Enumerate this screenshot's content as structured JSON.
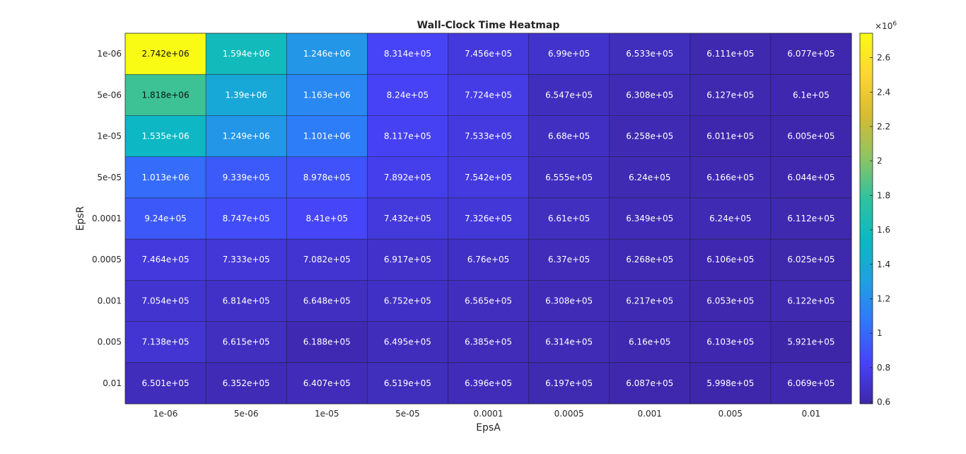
{
  "chart_data": {
    "type": "heatmap",
    "title": "Wall-Clock Time Heatmap",
    "xlabel": "EpsA",
    "ylabel": "EpsR",
    "x_categories": [
      "1e-06",
      "5e-06",
      "1e-05",
      "5e-05",
      "0.0001",
      "0.0005",
      "0.001",
      "0.005",
      "0.01"
    ],
    "y_categories": [
      "1e-06",
      "5e-06",
      "1e-05",
      "5e-05",
      "0.0001",
      "0.0005",
      "0.001",
      "0.005",
      "0.01"
    ],
    "values": [
      [
        2742000,
        1594000,
        1246000,
        831400,
        745600,
        699000,
        653300,
        611100,
        607700
      ],
      [
        1818000,
        1390000,
        1163000,
        824000,
        772400,
        654700,
        630800,
        612700,
        610000
      ],
      [
        1535000,
        1249000,
        1101000,
        811700,
        753300,
        668000,
        625800,
        601100,
        600500
      ],
      [
        1013000,
        933900,
        897800,
        789200,
        754200,
        655500,
        624000,
        616600,
        604400
      ],
      [
        924000,
        874700,
        841000,
        743200,
        732600,
        661000,
        634900,
        624000,
        611200
      ],
      [
        746400,
        733300,
        708200,
        691700,
        676000,
        637000,
        626800,
        610600,
        602500
      ],
      [
        705400,
        681400,
        664800,
        675200,
        656500,
        630800,
        621700,
        605300,
        612200
      ],
      [
        713800,
        661500,
        618800,
        649500,
        638500,
        631400,
        616000,
        610300,
        592100
      ],
      [
        650100,
        635200,
        640700,
        651900,
        639600,
        619700,
        608700,
        599800,
        606900
      ]
    ],
    "cell_labels": [
      [
        "2.742e+06",
        "1.594e+06",
        "1.246e+06",
        "8.314e+05",
        "7.456e+05",
        "6.99e+05",
        "6.533e+05",
        "6.111e+05",
        "6.077e+05"
      ],
      [
        "1.818e+06",
        "1.39e+06",
        "1.163e+06",
        "8.24e+05",
        "7.724e+05",
        "6.547e+05",
        "6.308e+05",
        "6.127e+05",
        "6.1e+05"
      ],
      [
        "1.535e+06",
        "1.249e+06",
        "1.101e+06",
        "8.117e+05",
        "7.533e+05",
        "6.68e+05",
        "6.258e+05",
        "6.011e+05",
        "6.005e+05"
      ],
      [
        "1.013e+06",
        "9.339e+05",
        "8.978e+05",
        "7.892e+05",
        "7.542e+05",
        "6.555e+05",
        "6.24e+05",
        "6.166e+05",
        "6.044e+05"
      ],
      [
        "9.24e+05",
        "8.747e+05",
        "8.41e+05",
        "7.432e+05",
        "7.326e+05",
        "6.61e+05",
        "6.349e+05",
        "6.24e+05",
        "6.112e+05"
      ],
      [
        "7.464e+05",
        "7.333e+05",
        "7.082e+05",
        "6.917e+05",
        "6.76e+05",
        "6.37e+05",
        "6.268e+05",
        "6.106e+05",
        "6.025e+05"
      ],
      [
        "7.054e+05",
        "6.814e+05",
        "6.648e+05",
        "6.752e+05",
        "6.565e+05",
        "6.308e+05",
        "6.217e+05",
        "6.053e+05",
        "6.122e+05"
      ],
      [
        "7.138e+05",
        "6.615e+05",
        "6.188e+05",
        "6.495e+05",
        "6.385e+05",
        "6.314e+05",
        "6.16e+05",
        "6.103e+05",
        "5.921e+05"
      ],
      [
        "6.501e+05",
        "6.352e+05",
        "6.407e+05",
        "6.519e+05",
        "6.396e+05",
        "6.197e+05",
        "6.087e+05",
        "5.998e+05",
        "6.069e+05"
      ]
    ],
    "colorbar": {
      "range": [
        590000,
        2742000
      ],
      "ticks": [
        0.6,
        0.8,
        1,
        1.2,
        1.4,
        1.6,
        1.8,
        2,
        2.2,
        2.4,
        2.6
      ],
      "tick_labels": [
        "0.6",
        "0.8",
        "1",
        "1.2",
        "1.4",
        "1.6",
        "1.8",
        "2",
        "2.2",
        "2.4",
        "2.6"
      ],
      "multiplier_base": "×10",
      "multiplier_exponent": "6",
      "colormap": "parula",
      "colormap_stops": [
        "#3e26a8",
        "#4743f8",
        "#2f78fb",
        "#1fa0e2",
        "#0cb8c2",
        "#30c29f",
        "#8fc460",
        "#d7bb33",
        "#fed533",
        "#f9fb15"
      ]
    },
    "grid": true,
    "legend": "none"
  }
}
